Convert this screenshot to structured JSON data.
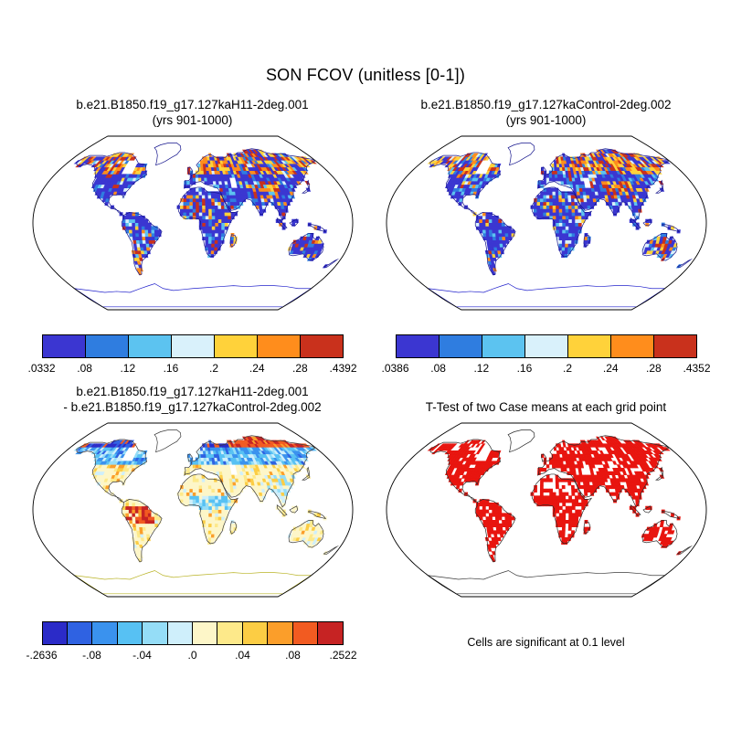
{
  "title": "SON FCOV (unitless [0-1])",
  "panels": [
    {
      "id": "case1",
      "title_line1": "b.e21.B1850.f19_g17.127kaH11-2deg.001",
      "title_line2": "(yrs 901-1000)",
      "colorbar": {
        "colors": [
          "#3b36d1",
          "#2f7de0",
          "#5cc3f0",
          "#d9f1fb",
          "#ffd23a",
          "#ff8d1c",
          "#c9311c"
        ],
        "labels": [
          ".0332",
          ".08",
          ".12",
          ".16",
          ".2",
          ".24",
          ".28",
          ".4392"
        ]
      },
      "coast_color": "#14148c",
      "antarctica_outline_color": "#2222cc"
    },
    {
      "id": "case2",
      "title_line1": "b.e21.B1850.f19_g17.127kaControl-2deg.002",
      "title_line2": "(yrs 901-1000)",
      "colorbar": {
        "colors": [
          "#3b36d1",
          "#2f7de0",
          "#5cc3f0",
          "#d9f1fb",
          "#ffd23a",
          "#ff8d1c",
          "#c9311c"
        ],
        "labels": [
          ".0386",
          ".08",
          ".12",
          ".16",
          ".2",
          ".24",
          ".28",
          ".4352"
        ]
      },
      "coast_color": "#14148c",
      "antarctica_outline_color": "#2222cc"
    },
    {
      "id": "difference",
      "title_line1": "b.e21.B1850.f19_g17.127kaH11-2deg.001",
      "title_line2": "- b.e21.B1850.f19_g17.127kaControl-2deg.002",
      "colorbar": {
        "colors": [
          "#2b2bc8",
          "#2f62e2",
          "#3a92ee",
          "#57c1f3",
          "#95ddf7",
          "#cfeffb",
          "#fdf6c8",
          "#fde98a",
          "#fccd44",
          "#fb9e2a",
          "#f25b21",
          "#c62323"
        ],
        "labels": [
          "-.2636",
          "-.08",
          "-.04",
          ".0",
          ".04",
          ".08",
          ".2522"
        ]
      },
      "coast_color": "#3a3a3a",
      "antarctica_outline_color": "#b9b325"
    },
    {
      "id": "ttest",
      "title_line1": "",
      "title_line2": "T-Test of two Case means at each grid point",
      "caption": "Cells are significant at 0.1 level",
      "cell_color": "#e8150f",
      "coast_color": "#2a2a2a",
      "antarctica_outline_color": "#3a3a3a"
    }
  ],
  "chart_data": [
    {
      "type": "heatmap",
      "panel": "top_left",
      "title": "b.e21.B1850.f19_g17.127kaH11-2deg.001",
      "subtitle": "(yrs 901-1000)",
      "variable": "SON FCOV (unitless [0-1])",
      "map_style": "global land grid cells, Robinson-style outline, white ocean",
      "data_min": 0.0332,
      "data_max": 0.4392,
      "levels": [
        0.08,
        0.12,
        0.16,
        0.2,
        0.24,
        0.28
      ],
      "palette": [
        "#3b36d1",
        "#2f7de0",
        "#5cc3f0",
        "#d9f1fb",
        "#ffd23a",
        "#ff8d1c",
        "#c9311c"
      ],
      "legend_position": "below"
    },
    {
      "type": "heatmap",
      "panel": "top_right",
      "title": "b.e21.B1850.f19_g17.127kaControl-2deg.002",
      "subtitle": "(yrs 901-1000)",
      "variable": "SON FCOV (unitless [0-1])",
      "data_min": 0.0386,
      "data_max": 0.4352,
      "levels": [
        0.08,
        0.12,
        0.16,
        0.2,
        0.24,
        0.28
      ],
      "palette": [
        "#3b36d1",
        "#2f7de0",
        "#5cc3f0",
        "#d9f1fb",
        "#ffd23a",
        "#ff8d1c",
        "#c9311c"
      ],
      "legend_position": "below"
    },
    {
      "type": "heatmap",
      "panel": "bottom_left",
      "title": "b.e21.B1850.f19_g17.127kaH11-2deg.001 - b.e21.B1850.f19_g17.127kaControl-2deg.002",
      "variable": "difference of SON FCOV",
      "data_min": -0.2636,
      "data_max": 0.2522,
      "labeled_levels": [
        -0.08,
        -0.04,
        0,
        0.04,
        0.08
      ],
      "segments": 12,
      "palette": [
        "#2b2bc8",
        "#2f62e2",
        "#3a92ee",
        "#57c1f3",
        "#95ddf7",
        "#cfeffb",
        "#fdf6c8",
        "#fde98a",
        "#fccd44",
        "#fb9e2a",
        "#f25b21",
        "#c62323"
      ],
      "legend_position": "below"
    },
    {
      "type": "heatmap",
      "panel": "bottom_right",
      "title": "T-Test of two Case means at each grid point",
      "note": "Cells are significant at 0.1 level",
      "significant_color": "#e8150f"
    }
  ]
}
